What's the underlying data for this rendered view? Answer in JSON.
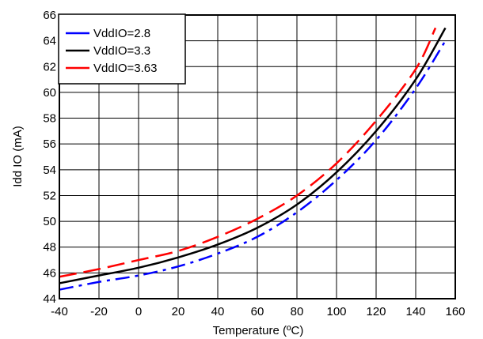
{
  "chart_data": {
    "type": "line",
    "xlabel": "Temperature (ºC)",
    "ylabel": "Idd IO (mA)",
    "xlim": [
      -40,
      160
    ],
    "ylim": [
      44,
      66
    ],
    "x_ticks": [
      "-40",
      "-20",
      "0",
      "20",
      "40",
      "60",
      "80",
      "100",
      "120",
      "140",
      "160"
    ],
    "y_ticks": [
      "44",
      "46",
      "48",
      "50",
      "52",
      "54",
      "56",
      "58",
      "60",
      "62",
      "64",
      "66"
    ],
    "grid": true,
    "legend": "top-left",
    "series": [
      {
        "name": "VddIO=2.8",
        "color": "#0000ff",
        "dash": "dash-dot",
        "points": [
          [
            -40,
            44.7
          ],
          [
            -20,
            45.3
          ],
          [
            0,
            45.8
          ],
          [
            20,
            46.5
          ],
          [
            40,
            47.5
          ],
          [
            60,
            48.8
          ],
          [
            80,
            50.7
          ],
          [
            100,
            53.2
          ],
          [
            120,
            56.3
          ],
          [
            140,
            60.3
          ],
          [
            155,
            64.0
          ]
        ]
      },
      {
        "name": "VddIO=3.3",
        "color": "#000000",
        "dash": "solid",
        "points": [
          [
            -40,
            45.2
          ],
          [
            -20,
            45.8
          ],
          [
            0,
            46.4
          ],
          [
            20,
            47.2
          ],
          [
            40,
            48.2
          ],
          [
            60,
            49.5
          ],
          [
            80,
            51.3
          ],
          [
            100,
            53.8
          ],
          [
            120,
            57.0
          ],
          [
            140,
            61.0
          ],
          [
            155,
            65.0
          ]
        ]
      },
      {
        "name": "VddIO=3.63",
        "color": "#ff0000",
        "dash": "long-dash",
        "points": [
          [
            -40,
            45.7
          ],
          [
            -20,
            46.3
          ],
          [
            0,
            47.0
          ],
          [
            20,
            47.7
          ],
          [
            40,
            48.8
          ],
          [
            60,
            50.2
          ],
          [
            80,
            52.0
          ],
          [
            100,
            54.5
          ],
          [
            120,
            57.8
          ],
          [
            140,
            61.8
          ],
          [
            150,
            65.0
          ]
        ]
      }
    ]
  }
}
